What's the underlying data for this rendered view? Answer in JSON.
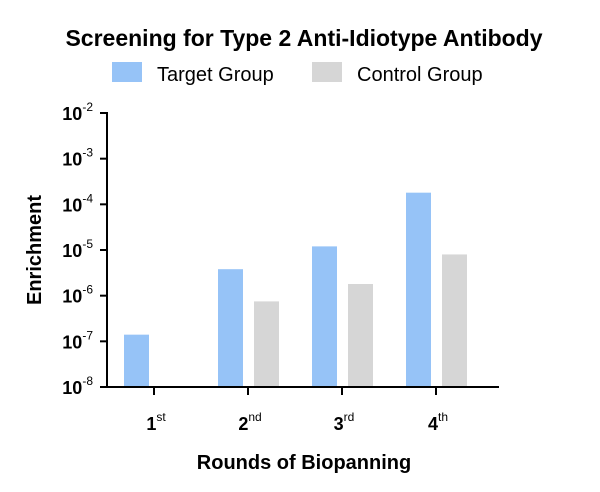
{
  "chart_data": {
    "type": "bar",
    "title": "Screening for Type 2 Anti-Idiotype Antibody",
    "xlabel": "Rounds of Biopanning",
    "ylabel": "Enrichment",
    "yscale": "log",
    "ylim": [
      1e-08,
      0.01
    ],
    "categories": [
      {
        "main": "1",
        "sup": "st"
      },
      {
        "main": "2",
        "sup": "nd"
      },
      {
        "main": "3",
        "sup": "rd"
      },
      {
        "main": "4",
        "sup": "th"
      }
    ],
    "y_ticks": [
      {
        "base": "10",
        "exp": "-2",
        "value": 0.01
      },
      {
        "base": "10",
        "exp": "-3",
        "value": 0.001
      },
      {
        "base": "10",
        "exp": "-4",
        "value": 0.0001
      },
      {
        "base": "10",
        "exp": "-5",
        "value": 1e-05
      },
      {
        "base": "10",
        "exp": "-6",
        "value": 1e-06
      },
      {
        "base": "10",
        "exp": "-7",
        "value": 1e-07
      },
      {
        "base": "10",
        "exp": "-8",
        "value": 1e-08
      }
    ],
    "series": [
      {
        "name": "Target Group",
        "color": "#96c3f7",
        "values": [
          1.4e-07,
          3.8e-06,
          1.2e-05,
          0.00018
        ]
      },
      {
        "name": "Control Group",
        "color": "#d6d6d6",
        "values": [
          null,
          7.5e-07,
          1.8e-06,
          8e-06
        ]
      }
    ],
    "legend_position": "top",
    "grid": false
  }
}
